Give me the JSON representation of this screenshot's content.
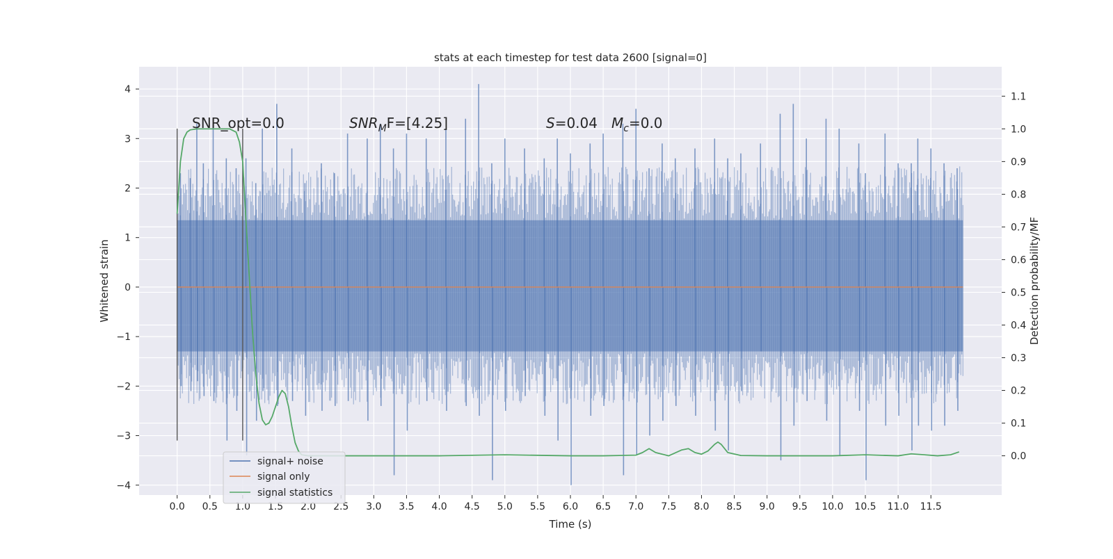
{
  "chart_data": {
    "type": "line",
    "title": "stats at each timestep for test data 2600 [signal=0]",
    "xlabel": "Time (s)",
    "ylabel": "Whitened strain",
    "y2label": "Detection probability/MF",
    "xlim": [
      -0.58,
      12.58
    ],
    "ylim": [
      -4.2,
      4.45
    ],
    "y2lim": [
      -0.12,
      1.19
    ],
    "x_ticks": [
      0.0,
      0.5,
      1.0,
      1.5,
      2.0,
      2.5,
      3.0,
      3.5,
      4.0,
      4.5,
      5.0,
      5.5,
      6.0,
      6.5,
      7.0,
      7.5,
      8.0,
      8.5,
      9.0,
      9.5,
      10.0,
      10.5,
      11.0,
      11.5
    ],
    "x_tick_labels": [
      "0.0",
      "0.5",
      "1.0",
      "1.5",
      "2.0",
      "2.5",
      "3.0",
      "3.5",
      "4.0",
      "4.5",
      "5.0",
      "5.5",
      "6.0",
      "6.5",
      "7.0",
      "7.5",
      "8.0",
      "8.5",
      "9.0",
      "9.5",
      "10.0",
      "10.5",
      "11.0",
      "11.5"
    ],
    "y_ticks": [
      4,
      3,
      2,
      1,
      0,
      -1,
      -2,
      -3,
      -4
    ],
    "y_tick_labels": [
      "4",
      "3",
      "2",
      "1",
      "0",
      "−1",
      "−2",
      "−3",
      "−4"
    ],
    "y2_ticks": [
      1.1,
      1.0,
      0.9,
      0.8,
      0.7,
      0.6,
      0.5,
      0.4,
      0.3,
      0.2,
      0.1,
      0.0
    ],
    "y2_tick_labels": [
      "1.1",
      "1.0",
      "0.9",
      "0.8",
      "0.7",
      "0.6",
      "0.5",
      "0.4",
      "0.3",
      "0.2",
      "0.1",
      "0.0"
    ],
    "grid": true,
    "legend_position": "bottom-left",
    "legend": [
      {
        "label": "signal+ noise",
        "color": "#4c72b0"
      },
      {
        "label": "signal only",
        "color": "#dd8452"
      },
      {
        "label": "signal statistics",
        "color": "#55a868"
      }
    ],
    "annotations": {
      "snr_opt": "SNR_opt=0.0",
      "snr_mf_main": "SNR",
      "snr_mf_sub": "M",
      "snr_mf_rest": "F=[4.25]",
      "s_symbol": "S",
      "s_value": "=0.04",
      "mc_symbol": "M",
      "mc_sub": "c",
      "mc_value": "=0.0"
    },
    "window_markers_x": [
      0.0,
      1.0
    ],
    "window_markers_yrange": [
      -3.1,
      3.2
    ],
    "noise_series": {
      "name": "signal+ noise",
      "x_range": [
        0.0,
        11.99
      ],
      "typical_band": [
        -1.9,
        1.95
      ],
      "peaks": [
        [
          0.05,
          2.3,
          -2.0
        ],
        [
          0.2,
          2.2,
          -2.1
        ],
        [
          0.3,
          3.3,
          -1.9
        ],
        [
          0.4,
          2.5,
          -2.2
        ],
        [
          0.55,
          3.3,
          -2.3
        ],
        [
          0.75,
          2.6,
          -3.1
        ],
        [
          0.9,
          2.4,
          -2.5
        ],
        [
          1.05,
          2.6,
          -3.4
        ],
        [
          1.2,
          2.1,
          -2.7
        ],
        [
          1.3,
          3.2,
          -2.1
        ],
        [
          1.52,
          3.7,
          -2.4
        ],
        [
          1.75,
          2.8,
          -2.3
        ],
        [
          1.95,
          2.1,
          -2.6
        ],
        [
          2.2,
          2.5,
          -2.5
        ],
        [
          2.4,
          2.3,
          -2.4
        ],
        [
          2.6,
          3.1,
          -2.3
        ],
        [
          2.9,
          3.0,
          -2.7
        ],
        [
          3.1,
          3.3,
          -2.4
        ],
        [
          3.3,
          2.8,
          -3.8
        ],
        [
          3.5,
          3.1,
          -2.9
        ],
        [
          3.8,
          3.0,
          -2.3
        ],
        [
          4.1,
          3.2,
          -2.5
        ],
        [
          4.4,
          3.4,
          -2.4
        ],
        [
          4.6,
          4.1,
          -2.6
        ],
        [
          4.8,
          2.5,
          -3.9
        ],
        [
          5.0,
          3.0,
          -2.5
        ],
        [
          5.3,
          2.8,
          -2.2
        ],
        [
          5.6,
          2.6,
          -2.6
        ],
        [
          5.8,
          3.0,
          -3.1
        ],
        [
          6.0,
          2.7,
          -4.0
        ],
        [
          6.3,
          2.9,
          -2.6
        ],
        [
          6.5,
          3.1,
          -2.4
        ],
        [
          6.8,
          3.3,
          -3.8
        ],
        [
          7.0,
          3.6,
          -3.4
        ],
        [
          7.2,
          2.4,
          -3.0
        ],
        [
          7.4,
          2.9,
          -2.7
        ],
        [
          7.6,
          2.6,
          -2.4
        ],
        [
          7.9,
          2.8,
          -2.6
        ],
        [
          8.2,
          3.0,
          -2.9
        ],
        [
          8.4,
          2.6,
          -3.3
        ],
        [
          8.6,
          2.7,
          -2.1
        ],
        [
          8.9,
          2.9,
          -1.3
        ],
        [
          9.2,
          3.5,
          -3.5
        ],
        [
          9.4,
          3.7,
          -2.8
        ],
        [
          9.6,
          3.0,
          -2.3
        ],
        [
          9.9,
          3.4,
          -2.7
        ],
        [
          10.1,
          3.2,
          -3.4
        ],
        [
          10.4,
          2.9,
          -2.5
        ],
        [
          10.5,
          2.3,
          -3.9
        ],
        [
          10.8,
          3.1,
          -2.8
        ],
        [
          11.0,
          2.5,
          -2.6
        ],
        [
          11.2,
          2.5,
          -3.3
        ],
        [
          11.3,
          3.0,
          -2.8
        ],
        [
          11.5,
          2.8,
          -2.9
        ],
        [
          11.7,
          2.5,
          -2.8
        ],
        [
          11.9,
          2.4,
          -2.5
        ]
      ]
    },
    "signal_only_series": {
      "name": "signal only",
      "x": [
        0.0,
        11.99
      ],
      "y": [
        0.0,
        0.0
      ]
    },
    "statistics_series": {
      "name": "signal statistics",
      "axis": "right",
      "x": [
        0.0,
        0.05,
        0.1,
        0.15,
        0.2,
        0.3,
        0.5,
        0.7,
        0.8,
        0.9,
        0.95,
        1.0,
        1.05,
        1.1,
        1.15,
        1.2,
        1.25,
        1.3,
        1.35,
        1.4,
        1.45,
        1.5,
        1.55,
        1.6,
        1.65,
        1.7,
        1.75,
        1.8,
        1.85,
        1.9,
        2.0,
        3.0,
        4.0,
        5.0,
        6.0,
        6.5,
        7.0,
        7.1,
        7.2,
        7.3,
        7.5,
        7.7,
        7.8,
        7.9,
        8.0,
        8.1,
        8.2,
        8.25,
        8.3,
        8.4,
        8.6,
        9.0,
        10.0,
        10.5,
        11.0,
        11.2,
        11.4,
        11.6,
        11.8,
        11.93
      ],
      "y": [
        0.74,
        0.9,
        0.97,
        0.99,
        0.997,
        1.0,
        1.0,
        1.0,
        1.0,
        0.99,
        0.96,
        0.9,
        0.72,
        0.55,
        0.38,
        0.25,
        0.16,
        0.11,
        0.095,
        0.1,
        0.12,
        0.15,
        0.18,
        0.2,
        0.19,
        0.15,
        0.09,
        0.04,
        0.015,
        0.003,
        0.0,
        0.0,
        0.0,
        0.003,
        0.0,
        0.0,
        0.002,
        0.01,
        0.022,
        0.01,
        0.0,
        0.018,
        0.022,
        0.01,
        0.005,
        0.015,
        0.035,
        0.042,
        0.035,
        0.01,
        0.001,
        0.0,
        0.0,
        0.003,
        0.0,
        0.006,
        0.003,
        0.0,
        0.003,
        0.012
      ]
    }
  }
}
